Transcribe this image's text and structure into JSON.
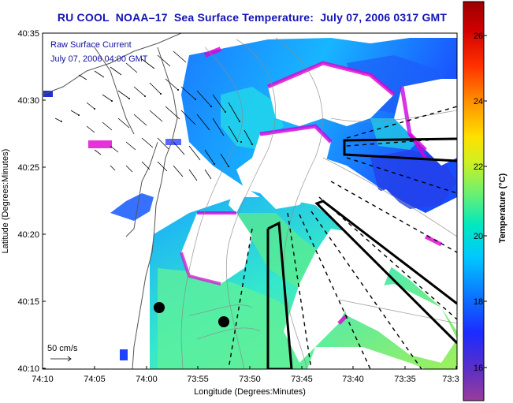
{
  "title": "RU COOL  NOAA–17  Sea Surface Temperature:  July 07, 2006 0317 GMT",
  "overlay": {
    "current_label": "Raw Surface Current",
    "current_time": "July 07, 2006 04:00 GMT",
    "scale_label": "50 cm/s"
  },
  "axes": {
    "xlabel": "Longitude (Degrees:Minutes)",
    "ylabel": "Latitude (Degrees:Minutes)",
    "x_ticks": [
      "74:10",
      "74:05",
      "74:00",
      "73:55",
      "73:50",
      "73:45",
      "73:40",
      "73:35",
      "73:3"
    ],
    "y_ticks": [
      "40:35",
      "40:30",
      "40:25",
      "40:20",
      "40:15",
      "40:10"
    ]
  },
  "colorbar": {
    "label": "Temperature (°C)",
    "ticks": [
      "26",
      "24",
      "22",
      "20",
      "18",
      "16"
    ],
    "range": [
      15.2,
      27.4
    ],
    "colors": [
      "#9a3c9a",
      "#5a2fc8",
      "#1b2bff",
      "#0a7cff",
      "#00c8ff",
      "#00e8c0",
      "#6cf070",
      "#d0f020",
      "#ffe000",
      "#ff9a00",
      "#ff3000",
      "#d00000",
      "#9a0000"
    ]
  },
  "markers": [
    "black-dot",
    "black-dot"
  ]
}
